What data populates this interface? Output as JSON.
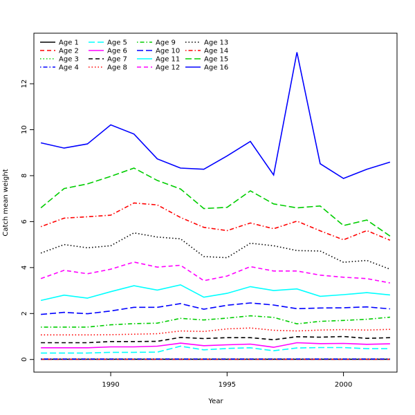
{
  "chart_data": {
    "type": "line",
    "title": "",
    "xlabel": "Year",
    "ylabel": "Catch mean weight",
    "xlim": [
      1986.7,
      2002.3
    ],
    "ylim": [
      -0.55,
      14.2
    ],
    "x_ticks": [
      1990,
      1995,
      2000
    ],
    "y_ticks": [
      0,
      2,
      4,
      6,
      8,
      10,
      12
    ],
    "grid": false,
    "legend_position": "top-left",
    "x": [
      1987,
      1988,
      1989,
      1990,
      1991,
      1992,
      1993,
      1994,
      1995,
      1996,
      1997,
      1998,
      1999,
      2000,
      2001,
      2002
    ],
    "series": [
      {
        "name": "Age 1",
        "color": "#000000",
        "dash": "solid",
        "values": [
          0.01,
          0.01,
          0.01,
          0.01,
          0.01,
          0.01,
          0.01,
          0.01,
          0.01,
          0.01,
          0.01,
          0.01,
          0.01,
          0.01,
          0.01,
          0.01
        ]
      },
      {
        "name": "Age 2",
        "color": "#ff0000",
        "dash": "dashed",
        "values": [
          0.01,
          0.01,
          0.01,
          0.01,
          0.01,
          0.01,
          0.01,
          0.01,
          0.01,
          0.01,
          0.01,
          0.01,
          0.01,
          0.01,
          0.01,
          0.01
        ]
      },
      {
        "name": "Age 3",
        "color": "#00cd00",
        "dash": "dotted",
        "values": [
          0.02,
          0.02,
          0.02,
          0.02,
          0.02,
          0.02,
          0.02,
          0.02,
          0.02,
          0.02,
          0.02,
          0.02,
          0.02,
          0.02,
          0.02,
          0.02
        ]
      },
      {
        "name": "Age 4",
        "color": "#0000ff",
        "dash": "dotdash",
        "values": [
          0.02,
          0.02,
          0.02,
          0.02,
          0.02,
          0.02,
          0.02,
          0.02,
          0.02,
          0.02,
          0.02,
          0.02,
          0.02,
          0.02,
          0.02,
          0.02
        ]
      },
      {
        "name": "Age 5",
        "color": "#00ffff",
        "dash": "longdash",
        "values": [
          0.28,
          0.28,
          0.28,
          0.31,
          0.31,
          0.32,
          0.58,
          0.42,
          0.48,
          0.51,
          0.38,
          0.5,
          0.52,
          0.52,
          0.47,
          0.47
        ]
      },
      {
        "name": "Age 6",
        "color": "#ff00ff",
        "dash": "solid",
        "values": [
          0.51,
          0.51,
          0.51,
          0.55,
          0.55,
          0.58,
          0.71,
          0.6,
          0.64,
          0.67,
          0.53,
          0.73,
          0.69,
          0.7,
          0.66,
          0.68
        ]
      },
      {
        "name": "Age 7",
        "color": "#000000",
        "dash": "dashed",
        "values": [
          0.73,
          0.73,
          0.73,
          0.78,
          0.78,
          0.79,
          0.96,
          0.91,
          0.95,
          0.95,
          0.86,
          0.99,
          0.97,
          1.0,
          0.92,
          0.95
        ]
      },
      {
        "name": "Age 8",
        "color": "#ff0000",
        "dash": "dotted",
        "values": [
          1.07,
          1.07,
          1.07,
          1.08,
          1.1,
          1.12,
          1.24,
          1.22,
          1.33,
          1.37,
          1.27,
          1.24,
          1.28,
          1.3,
          1.28,
          1.31
        ]
      },
      {
        "name": "Age 9",
        "color": "#00cd00",
        "dash": "dotdash",
        "values": [
          1.41,
          1.41,
          1.41,
          1.51,
          1.56,
          1.58,
          1.79,
          1.72,
          1.8,
          1.9,
          1.83,
          1.55,
          1.66,
          1.7,
          1.75,
          1.84
        ]
      },
      {
        "name": "Age 10",
        "color": "#0000ff",
        "dash": "longdash",
        "values": [
          1.96,
          2.05,
          1.99,
          2.11,
          2.27,
          2.27,
          2.43,
          2.19,
          2.36,
          2.46,
          2.37,
          2.21,
          2.24,
          2.25,
          2.29,
          2.2
        ]
      },
      {
        "name": "Age 11",
        "color": "#00ffff",
        "dash": "solid",
        "values": [
          2.57,
          2.8,
          2.67,
          2.95,
          3.21,
          3.02,
          3.25,
          2.71,
          2.88,
          3.17,
          3.0,
          3.07,
          2.75,
          2.82,
          2.91,
          2.81
        ]
      },
      {
        "name": "Age 12",
        "color": "#ff00ff",
        "dash": "dashed",
        "values": [
          3.52,
          3.88,
          3.73,
          3.93,
          4.24,
          4.02,
          4.1,
          3.43,
          3.63,
          4.04,
          3.85,
          3.85,
          3.67,
          3.58,
          3.52,
          3.33
        ]
      },
      {
        "name": "Age 13",
        "color": "#000000",
        "dash": "dotted",
        "values": [
          4.63,
          5.0,
          4.86,
          4.95,
          5.51,
          5.33,
          5.25,
          4.48,
          4.43,
          5.06,
          4.95,
          4.74,
          4.72,
          4.23,
          4.31,
          3.93
        ]
      },
      {
        "name": "Age 14",
        "color": "#ff0000",
        "dash": "dotdash",
        "values": [
          5.78,
          6.15,
          6.21,
          6.28,
          6.81,
          6.73,
          6.18,
          5.75,
          5.61,
          5.94,
          5.69,
          6.02,
          5.6,
          5.21,
          5.61,
          5.19
        ]
      },
      {
        "name": "Age 15",
        "color": "#00cd00",
        "dash": "longdash",
        "values": [
          6.6,
          7.44,
          7.64,
          7.97,
          8.33,
          7.79,
          7.42,
          6.57,
          6.62,
          7.34,
          6.77,
          6.6,
          6.68,
          5.83,
          6.07,
          5.37
        ]
      },
      {
        "name": "Age 16",
        "color": "#0000ff",
        "dash": "solid",
        "values": [
          9.43,
          9.2,
          9.38,
          10.21,
          9.81,
          8.73,
          8.33,
          8.28,
          8.86,
          9.49,
          8.03,
          13.37,
          8.52,
          7.88,
          8.28,
          8.59
        ]
      }
    ]
  }
}
